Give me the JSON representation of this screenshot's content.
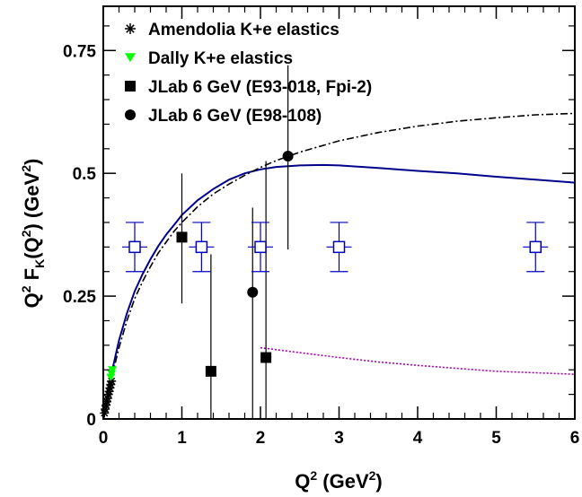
{
  "chart_data": {
    "type": "scatter",
    "xlim": [
      0,
      6
    ],
    "ylim": [
      0,
      0.84
    ],
    "x_ticks": [
      0,
      1,
      2,
      3,
      4,
      5,
      6
    ],
    "y_ticks": [
      0,
      0.25,
      0.5,
      0.75
    ],
    "x_tick_labels": [
      "0",
      "1",
      "2",
      "3",
      "4",
      "5",
      "6"
    ],
    "y_tick_labels": [
      "0",
      "0.25",
      "0.5",
      "0.75"
    ],
    "grid": false,
    "legend_position": "top-left",
    "xlabel": {
      "main": "Q",
      "sup1": "2",
      "mid": " (GeV",
      "sup2": "2",
      "end": ")"
    },
    "ylabel": {
      "p1": "Q",
      "s1": "2",
      "p2": " F",
      "sub": "K",
      "p3": "(Q",
      "s2": "2",
      "p4": ") (GeV",
      "s3": "2",
      "p5": ")"
    },
    "legend": [
      {
        "label": "Amendolia K+e elastics",
        "marker": "asterisk",
        "color": "#000000"
      },
      {
        "label": "Dally K+e elastics",
        "marker": "triangle-down",
        "color": "#00ff00"
      },
      {
        "label": "JLab 6 GeV (E93-018, Fpi-2)",
        "marker": "square",
        "color": "#000000"
      },
      {
        "label": "JLab 6 GeV (E98-108)",
        "marker": "circle",
        "color": "#000000"
      }
    ],
    "series": [
      {
        "marker": "asterisk",
        "color": "#000000",
        "points": [
          [
            0.015,
            0.012
          ],
          [
            0.025,
            0.02
          ],
          [
            0.035,
            0.028
          ],
          [
            0.045,
            0.035
          ],
          [
            0.055,
            0.042
          ],
          [
            0.065,
            0.05
          ],
          [
            0.075,
            0.056
          ],
          [
            0.085,
            0.063
          ],
          [
            0.095,
            0.07
          ],
          [
            0.105,
            0.077
          ]
        ]
      },
      {
        "marker": "triangle-down",
        "color": "#00ff00",
        "points": [
          [
            0.095,
            0.085
          ],
          [
            0.105,
            0.092
          ],
          [
            0.115,
            0.1
          ]
        ]
      },
      {
        "marker": "square",
        "color": "#000000",
        "points": [
          {
            "x": 1.0,
            "y": 0.37,
            "ylo": 0.235,
            "yhi": 0.5
          },
          {
            "x": 1.37,
            "y": 0.097,
            "ylo": 0.0,
            "yhi": 0.335
          },
          {
            "x": 2.07,
            "y": 0.125,
            "ylo": 0.0,
            "yhi": 0.525
          }
        ]
      },
      {
        "marker": "circle",
        "color": "#000000",
        "points": [
          {
            "x": 1.9,
            "y": 0.258,
            "ylo": 0.0,
            "yhi": 0.43
          },
          {
            "x": 2.35,
            "y": 0.535,
            "ylo": 0.345,
            "yhi": 0.72
          }
        ]
      },
      {
        "marker": "open-square",
        "color": "#0000bb",
        "points": [
          {
            "x": 0.4,
            "y": 0.35,
            "ylo": 0.3,
            "yhi": 0.4
          },
          {
            "x": 1.25,
            "y": 0.35,
            "ylo": 0.3,
            "yhi": 0.4
          },
          {
            "x": 2.0,
            "y": 0.35,
            "ylo": 0.3,
            "yhi": 0.4
          },
          {
            "x": 3.0,
            "y": 0.35,
            "ylo": 0.3,
            "yhi": 0.4
          },
          {
            "x": 5.5,
            "y": 0.35,
            "ylo": 0.3,
            "yhi": 0.4
          }
        ]
      }
    ],
    "curves": [
      {
        "style": "solid",
        "color": "#00008b",
        "points": [
          [
            0.0,
            0.0
          ],
          [
            0.1,
            0.09
          ],
          [
            0.2,
            0.16
          ],
          [
            0.3,
            0.215
          ],
          [
            0.4,
            0.26
          ],
          [
            0.5,
            0.295
          ],
          [
            0.6,
            0.325
          ],
          [
            0.7,
            0.352
          ],
          [
            0.8,
            0.375
          ],
          [
            0.9,
            0.395
          ],
          [
            1.0,
            0.415
          ],
          [
            1.2,
            0.445
          ],
          [
            1.4,
            0.468
          ],
          [
            1.6,
            0.487
          ],
          [
            1.8,
            0.5
          ],
          [
            2.0,
            0.508
          ],
          [
            2.2,
            0.513
          ],
          [
            2.5,
            0.516
          ],
          [
            2.8,
            0.517
          ],
          [
            3.0,
            0.516
          ],
          [
            3.5,
            0.511
          ],
          [
            4.0,
            0.505
          ],
          [
            4.5,
            0.5
          ],
          [
            5.0,
            0.493
          ],
          [
            5.5,
            0.487
          ],
          [
            6.0,
            0.481
          ]
        ]
      },
      {
        "style": "dashdot",
        "color": "#000000",
        "points": [
          [
            0.0,
            0.0
          ],
          [
            0.1,
            0.08
          ],
          [
            0.2,
            0.145
          ],
          [
            0.3,
            0.2
          ],
          [
            0.4,
            0.245
          ],
          [
            0.5,
            0.28
          ],
          [
            0.6,
            0.31
          ],
          [
            0.7,
            0.338
          ],
          [
            0.8,
            0.36
          ],
          [
            0.9,
            0.382
          ],
          [
            1.0,
            0.4
          ],
          [
            1.2,
            0.432
          ],
          [
            1.4,
            0.458
          ],
          [
            1.6,
            0.478
          ],
          [
            1.8,
            0.496
          ],
          [
            2.0,
            0.512
          ],
          [
            2.2,
            0.526
          ],
          [
            2.5,
            0.543
          ],
          [
            3.0,
            0.566
          ],
          [
            3.5,
            0.583
          ],
          [
            4.0,
            0.596
          ],
          [
            4.5,
            0.606
          ],
          [
            5.0,
            0.613
          ],
          [
            5.5,
            0.619
          ],
          [
            6.0,
            0.622
          ]
        ]
      },
      {
        "style": "dotted",
        "color": "#aa00aa",
        "points": [
          [
            2.0,
            0.145
          ],
          [
            2.25,
            0.14
          ],
          [
            2.5,
            0.135
          ],
          [
            3.0,
            0.125
          ],
          [
            3.5,
            0.116
          ],
          [
            4.0,
            0.109
          ],
          [
            4.5,
            0.103
          ],
          [
            5.0,
            0.097
          ],
          [
            5.5,
            0.094
          ],
          [
            6.0,
            0.091
          ]
        ]
      }
    ]
  }
}
